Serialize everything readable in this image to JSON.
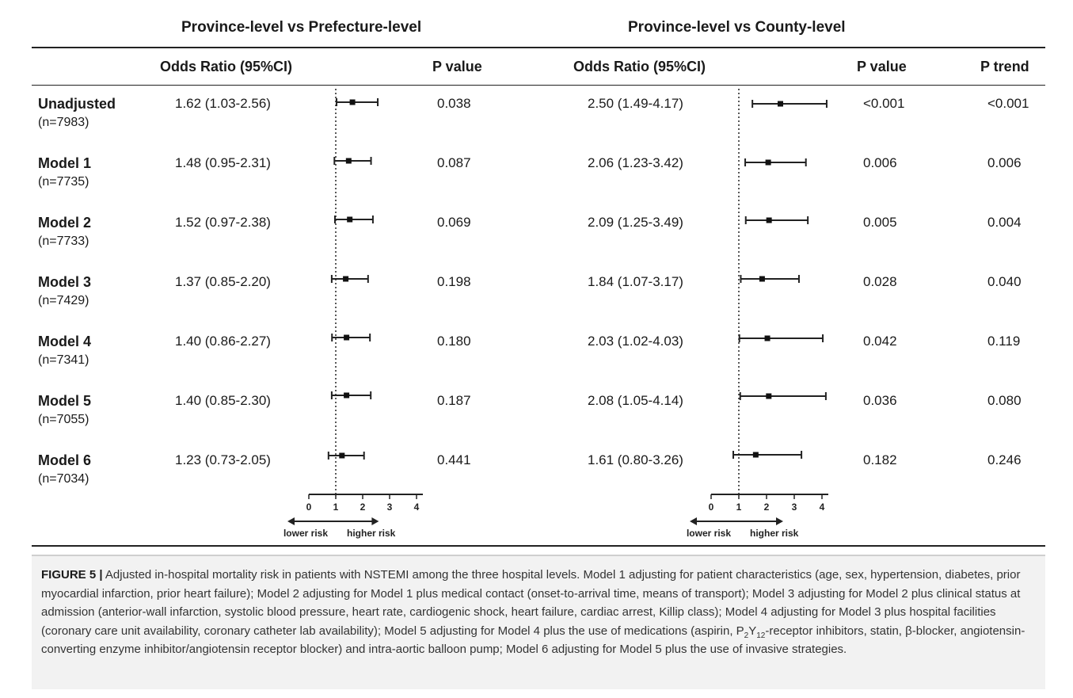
{
  "chart_data": {
    "type": "forest",
    "panels": [
      {
        "title": "Province-level vs Prefecture-level",
        "col_or": "Odds Ratio (95%CI)",
        "col_p": "P value",
        "axis_ticks": [
          "0",
          "1",
          "2",
          "3",
          "4"
        ],
        "xlim": [
          0,
          4
        ],
        "reference_line": 1,
        "arrow_left": "lower risk",
        "arrow_right": "higher risk",
        "rows": [
          {
            "or_text": "1.62 (1.03-2.56)",
            "or": 1.62,
            "lo": 1.03,
            "hi": 2.56,
            "p": "0.038"
          },
          {
            "or_text": "1.48 (0.95-2.31)",
            "or": 1.48,
            "lo": 0.95,
            "hi": 2.31,
            "p": "0.087"
          },
          {
            "or_text": "1.52 (0.97-2.38)",
            "or": 1.52,
            "lo": 0.97,
            "hi": 2.38,
            "p": "0.069"
          },
          {
            "or_text": "1.37 (0.85-2.20)",
            "or": 1.37,
            "lo": 0.85,
            "hi": 2.2,
            "p": "0.198"
          },
          {
            "or_text": "1.40 (0.86-2.27)",
            "or": 1.4,
            "lo": 0.86,
            "hi": 2.27,
            "p": "0.180"
          },
          {
            "or_text": "1.40 (0.85-2.30)",
            "or": 1.4,
            "lo": 0.85,
            "hi": 2.3,
            "p": "0.187"
          },
          {
            "or_text": "1.23 (0.73-2.05)",
            "or": 1.23,
            "lo": 0.73,
            "hi": 2.05,
            "p": "0.441"
          }
        ]
      },
      {
        "title": "Province-level vs County-level",
        "col_or": "Odds Ratio (95%CI)",
        "col_p": "P value",
        "col_trend": "P trend",
        "axis_ticks": [
          "0",
          "1",
          "2",
          "3",
          "4"
        ],
        "xlim": [
          0,
          4
        ],
        "reference_line": 1,
        "arrow_left": "lower risk",
        "arrow_right": "higher risk",
        "rows": [
          {
            "or_text": "2.50 (1.49-4.17)",
            "or": 2.5,
            "lo": 1.49,
            "hi": 4.17,
            "p": "<0.001",
            "p_trend": "<0.001"
          },
          {
            "or_text": "2.06 (1.23-3.42)",
            "or": 2.06,
            "lo": 1.23,
            "hi": 3.42,
            "p": "0.006",
            "p_trend": "0.006"
          },
          {
            "or_text": "2.09 (1.25-3.49)",
            "or": 2.09,
            "lo": 1.25,
            "hi": 3.49,
            "p": "0.005",
            "p_trend": "0.004"
          },
          {
            "or_text": "1.84 (1.07-3.17)",
            "or": 1.84,
            "lo": 1.07,
            "hi": 3.17,
            "p": "0.028",
            "p_trend": "0.040"
          },
          {
            "or_text": "2.03 (1.02-4.03)",
            "or": 2.03,
            "lo": 1.02,
            "hi": 4.03,
            "p": "0.042",
            "p_trend": "0.119"
          },
          {
            "or_text": "2.08 (1.05-4.14)",
            "or": 2.08,
            "lo": 1.05,
            "hi": 4.14,
            "p": "0.036",
            "p_trend": "0.080"
          },
          {
            "or_text": "1.61 (0.80-3.26)",
            "or": 1.61,
            "lo": 0.8,
            "hi": 3.26,
            "p": "0.182",
            "p_trend": "0.246"
          }
        ]
      }
    ],
    "row_labels": [
      {
        "name": "Unadjusted",
        "n": "(n=7983)"
      },
      {
        "name": "Model 1",
        "n": "(n=7735)"
      },
      {
        "name": "Model 2",
        "n": "(n=7733)"
      },
      {
        "name": "Model 3",
        "n": "(n=7429)"
      },
      {
        "name": "Model 4",
        "n": "(n=7341)"
      },
      {
        "name": "Model 5",
        "n": "(n=7055)"
      },
      {
        "name": "Model 6",
        "n": "(n=7034)"
      }
    ]
  },
  "caption": {
    "label": "FIGURE 5 |",
    "text_1": " Adjusted in-hospital mortality risk in patients with NSTEMI among the three hospital levels. Model 1 adjusting for patient characteristics (age, sex, hypertension, diabetes, prior myocardial infarction, prior heart failure); Model 2 adjusting for Model 1 plus medical contact (onset-to-arrival time, means of transport); Model 3 adjusting for Model 2 plus clinical status at admission (anterior-wall infarction, systolic blood pressure, heart rate, cardiogenic shock, heart failure, cardiac arrest, Killip class); Model 4 adjusting for Model 3 plus hospital facilities (coronary care unit availability, coronary catheter lab availability); Model 5 adjusting for Model 4 plus the use of medications (aspirin, P",
    "sub_1": "2",
    "text_2": "Y",
    "sub_2": "12",
    "text_3": "-receptor inhibitors, statin, β-blocker, angiotensin-converting enzyme inhibitor/angiotensin receptor blocker) and intra-aortic balloon pump; Model 6 adjusting for Model 5 plus the use of invasive strategies."
  }
}
